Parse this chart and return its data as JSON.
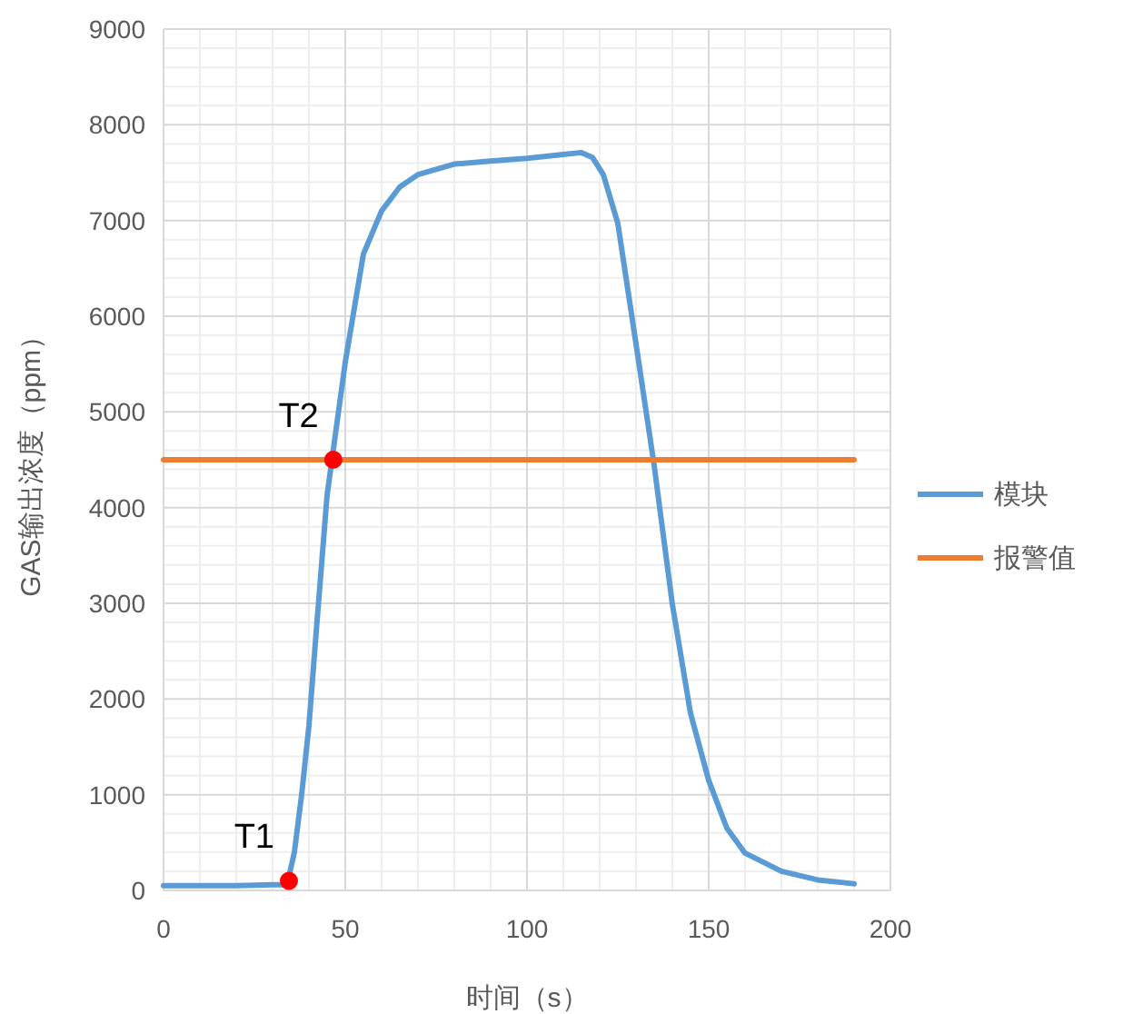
{
  "chart_data": {
    "type": "line",
    "xlabel": "时间（s）",
    "ylabel": "GAS输出浓度（ppm）",
    "xlim": [
      0,
      200
    ],
    "xticks": [
      0,
      50,
      100,
      150,
      200
    ],
    "ylim": [
      0,
      9000
    ],
    "yticks": [
      0,
      1000,
      2000,
      3000,
      4000,
      5000,
      6000,
      7000,
      8000,
      9000
    ],
    "grid": true,
    "legend": "right",
    "marker": "none",
    "series": [
      {
        "name": "模块",
        "color": "#5b9bd5",
        "x": [
          0,
          10,
          20,
          30,
          34,
          36,
          38,
          40,
          42,
          45,
          50,
          55,
          60,
          65,
          70,
          80,
          90,
          100,
          110,
          115,
          118,
          121,
          125,
          130,
          135,
          140,
          145,
          150,
          155,
          160,
          170,
          180,
          190
        ],
        "values": [
          50,
          50,
          50,
          60,
          60,
          400,
          1000,
          1720,
          2700,
          4130,
          5520,
          6650,
          7100,
          7350,
          7480,
          7590,
          7620,
          7650,
          7690,
          7710,
          7660,
          7480,
          6970,
          5710,
          4440,
          2990,
          1850,
          1150,
          650,
          390,
          200,
          110,
          70
        ]
      },
      {
        "name": "报警值",
        "color": "#ed7d31",
        "x": [
          0,
          190
        ],
        "values": [
          4500,
          4500
        ]
      },
      {
        "type": "scatter",
        "color": "#ff0000",
        "marker": "circle",
        "x": [
          34.5,
          46.7
        ],
        "values": [
          100,
          4500
        ]
      }
    ],
    "annotations": [
      {
        "text": "T1",
        "x": 34.5,
        "y": 100
      },
      {
        "text": "T2",
        "x": 46.7,
        "y": 4500
      }
    ]
  }
}
